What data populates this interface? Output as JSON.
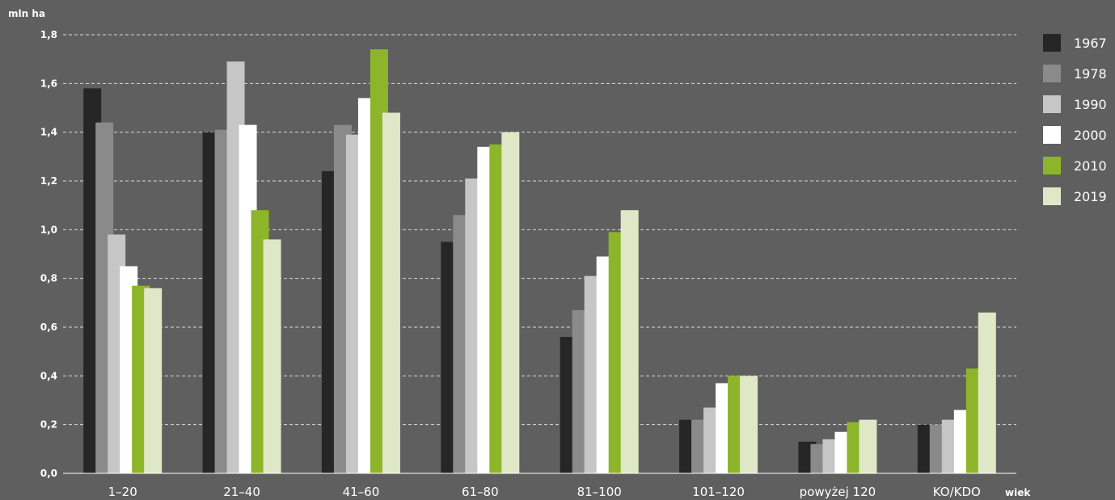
{
  "chart_data": {
    "type": "bar",
    "ylabel": "mln ha",
    "xlabel": "wiek",
    "ylim": [
      0,
      1.8
    ],
    "yticks": [
      "0,0",
      "0,2",
      "0,4",
      "0,6",
      "0,8",
      "1,0",
      "1,2",
      "1,4",
      "1,6",
      "1,8"
    ],
    "grid": true,
    "legend_position": "right",
    "categories": [
      "1–20",
      "21–40",
      "41–60",
      "61–80",
      "81–100",
      "101–120",
      "powyżej 120",
      "KO/KDO"
    ],
    "series": [
      {
        "name": "1967",
        "color": "#262626",
        "values": [
          1.58,
          1.4,
          1.24,
          0.95,
          0.56,
          0.22,
          0.13,
          0.2
        ]
      },
      {
        "name": "1978",
        "color": "#8a8a8a",
        "values": [
          1.44,
          1.41,
          1.43,
          1.06,
          0.67,
          0.22,
          0.12,
          0.2
        ]
      },
      {
        "name": "1990",
        "color": "#c6c6c6",
        "values": [
          0.98,
          1.69,
          1.39,
          1.21,
          0.81,
          0.27,
          0.14,
          0.22
        ]
      },
      {
        "name": "2000",
        "color": "#ffffff",
        "values": [
          0.85,
          1.43,
          1.54,
          1.34,
          0.89,
          0.37,
          0.17,
          0.26
        ]
      },
      {
        "name": "2010",
        "color": "#8db52a",
        "values": [
          0.77,
          1.08,
          1.74,
          1.35,
          0.99,
          0.4,
          0.21,
          0.43
        ]
      },
      {
        "name": "2019",
        "color": "#dfe8c6",
        "values": [
          0.76,
          0.96,
          1.48,
          1.4,
          1.08,
          0.4,
          0.22,
          0.66
        ]
      }
    ]
  }
}
